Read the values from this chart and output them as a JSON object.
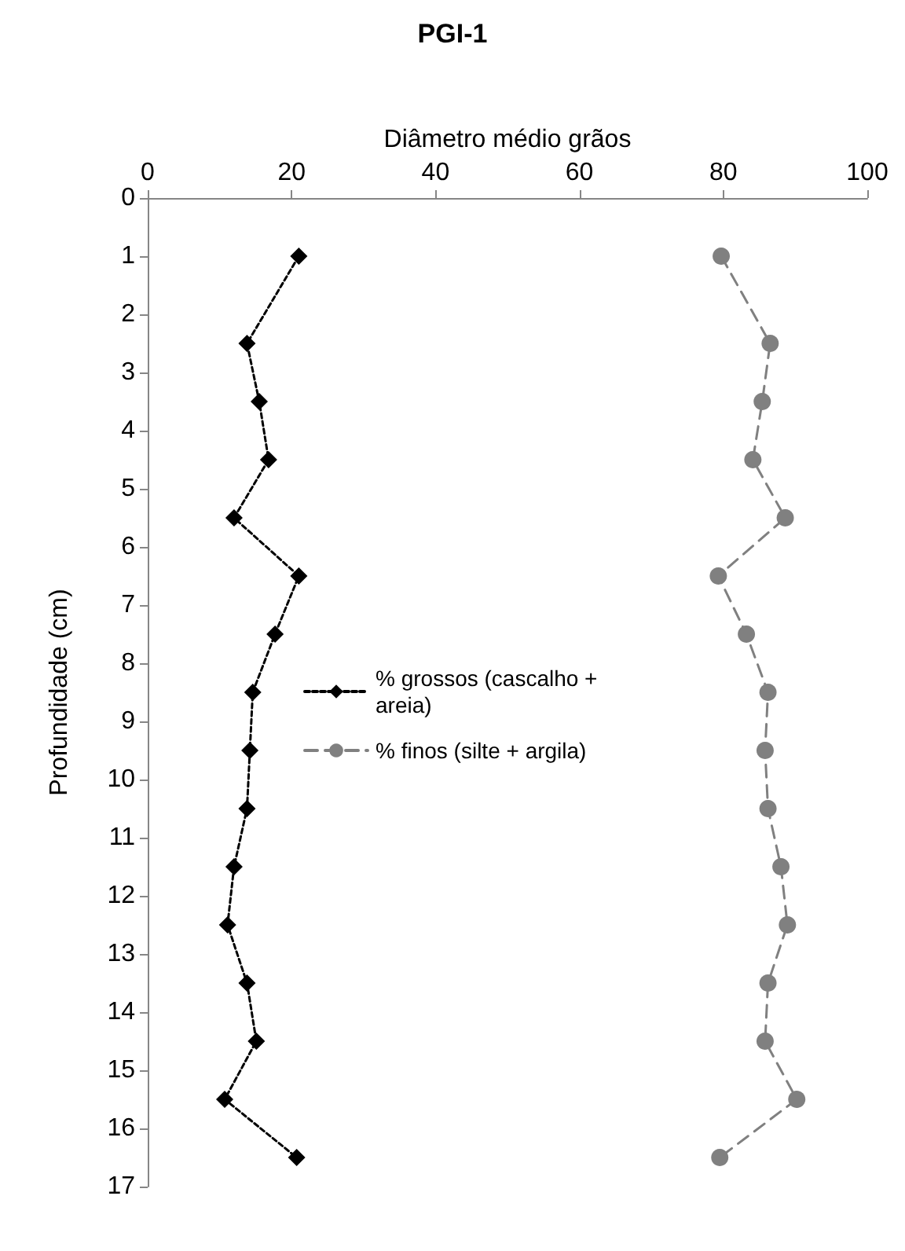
{
  "chart_data": {
    "type": "line",
    "title": "PGI-1",
    "xlabel": "Diâmetro médio grãos",
    "ylabel": "Profundidade (cm)",
    "orientation": "horizontal",
    "x": [
      1,
      2.5,
      3.5,
      4.5,
      5.5,
      6.5,
      7.5,
      8.5,
      9.5,
      10.5,
      11.5,
      12.5,
      13.5,
      14.5,
      15.5,
      16.5
    ],
    "series": [
      {
        "name": "% grossos (cascalho + areia)",
        "color": "#000000",
        "marker": "diamond",
        "line_style": "dotted",
        "values": [
          21.0,
          13.8,
          15.5,
          16.8,
          12.0,
          21.0,
          17.7,
          14.6,
          14.2,
          13.8,
          12.0,
          11.1,
          13.8,
          15.1,
          10.7,
          20.7
        ]
      },
      {
        "name": "% finos (silte + argila)",
        "color": "#808080",
        "marker": "circle",
        "line_style": "dashed",
        "values": [
          79.7,
          86.5,
          85.4,
          84.1,
          88.6,
          79.3,
          83.2,
          86.2,
          85.8,
          86.2,
          88.0,
          88.9,
          86.2,
          85.8,
          90.2,
          79.5
        ]
      }
    ],
    "xlim": [
      0,
      100
    ],
    "xticks": [
      0,
      20,
      40,
      60,
      80,
      100
    ],
    "ylim": [
      17,
      0
    ],
    "yticks": [
      0,
      1,
      2,
      3,
      4,
      5,
      6,
      7,
      8,
      9,
      10,
      11,
      12,
      13,
      14,
      15,
      16,
      17
    ],
    "grid": false,
    "legend": "center"
  }
}
